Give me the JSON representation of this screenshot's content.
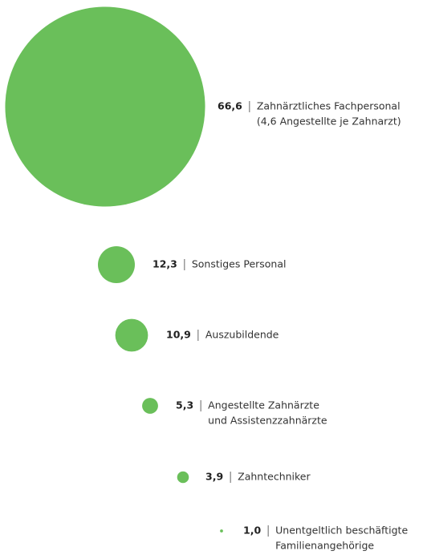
{
  "chart_data": {
    "type": "bubble",
    "color": "#6abf5a",
    "categories": [
      [
        "Zahnärztliches Fachpersonal",
        "(4,6 Angestellte je Zahnarzt)"
      ],
      [
        "Sonstiges Personal"
      ],
      [
        "Auszubildende"
      ],
      [
        "Angestellte Zahnärzte",
        "und Assistenzzahnärzte"
      ],
      [
        "Zahntechniker"
      ],
      [
        "Unentgeltlich beschäftigte",
        "Familienangehörige"
      ]
    ],
    "values": [
      66.6,
      12.3,
      10.9,
      5.3,
      3.9,
      1.0
    ],
    "value_labels": [
      "66,6",
      "12,3",
      "10,9",
      "5,3",
      "3,9",
      "1,0"
    ]
  }
}
